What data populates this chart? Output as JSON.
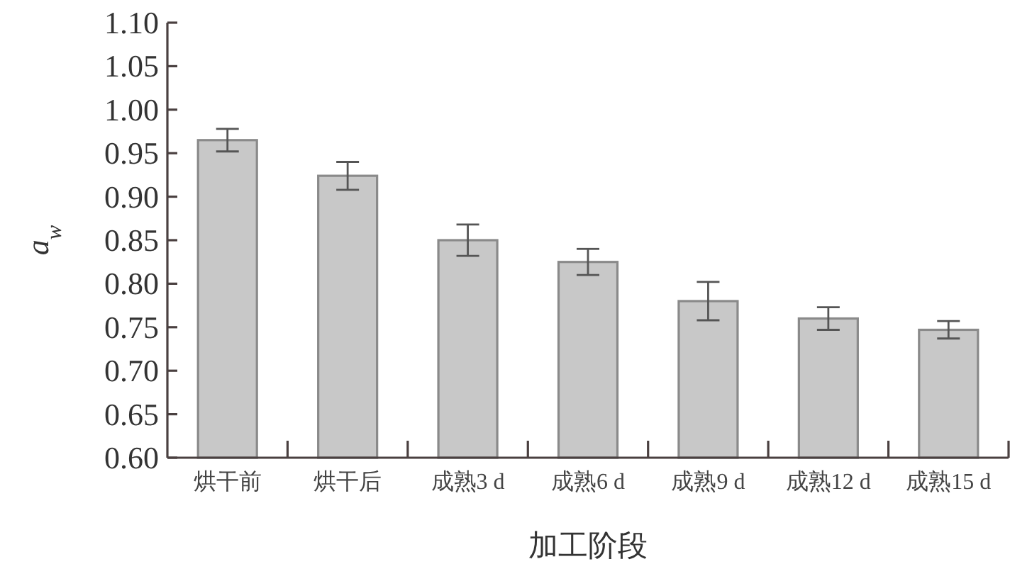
{
  "chart_data": {
    "type": "bar",
    "xlabel": "加工阶段",
    "ylabel": "a$_{w}$",
    "categories": [
      "烘干前",
      "烘干后",
      "成熟3 d",
      "成熟6 d",
      "成熟9 d",
      "成熟12 d",
      "成熟15 d"
    ],
    "values": [
      0.965,
      0.924,
      0.85,
      0.825,
      0.78,
      0.76,
      0.747
    ],
    "errors": [
      0.013,
      0.016,
      0.018,
      0.015,
      0.022,
      0.013,
      0.01
    ],
    "color": "#c8c8c8",
    "ylim": [
      0.6,
      1.1
    ],
    "yticks": [
      {
        "value": 0.6,
        "label": "0.60"
      },
      0.65,
      {
        "value": 0.7,
        "label": "0.70"
      },
      0.75,
      {
        "value": 0.8,
        "label": "0.80"
      },
      0.85,
      {
        "value": 0.9,
        "label": "0.90"
      },
      0.95,
      {
        "value": 1.0,
        "label": "1.00"
      },
      1.05,
      {
        "value": 1.1,
        "label": "1.10"
      }
    ],
    "grid": false,
    "legend": false
  }
}
